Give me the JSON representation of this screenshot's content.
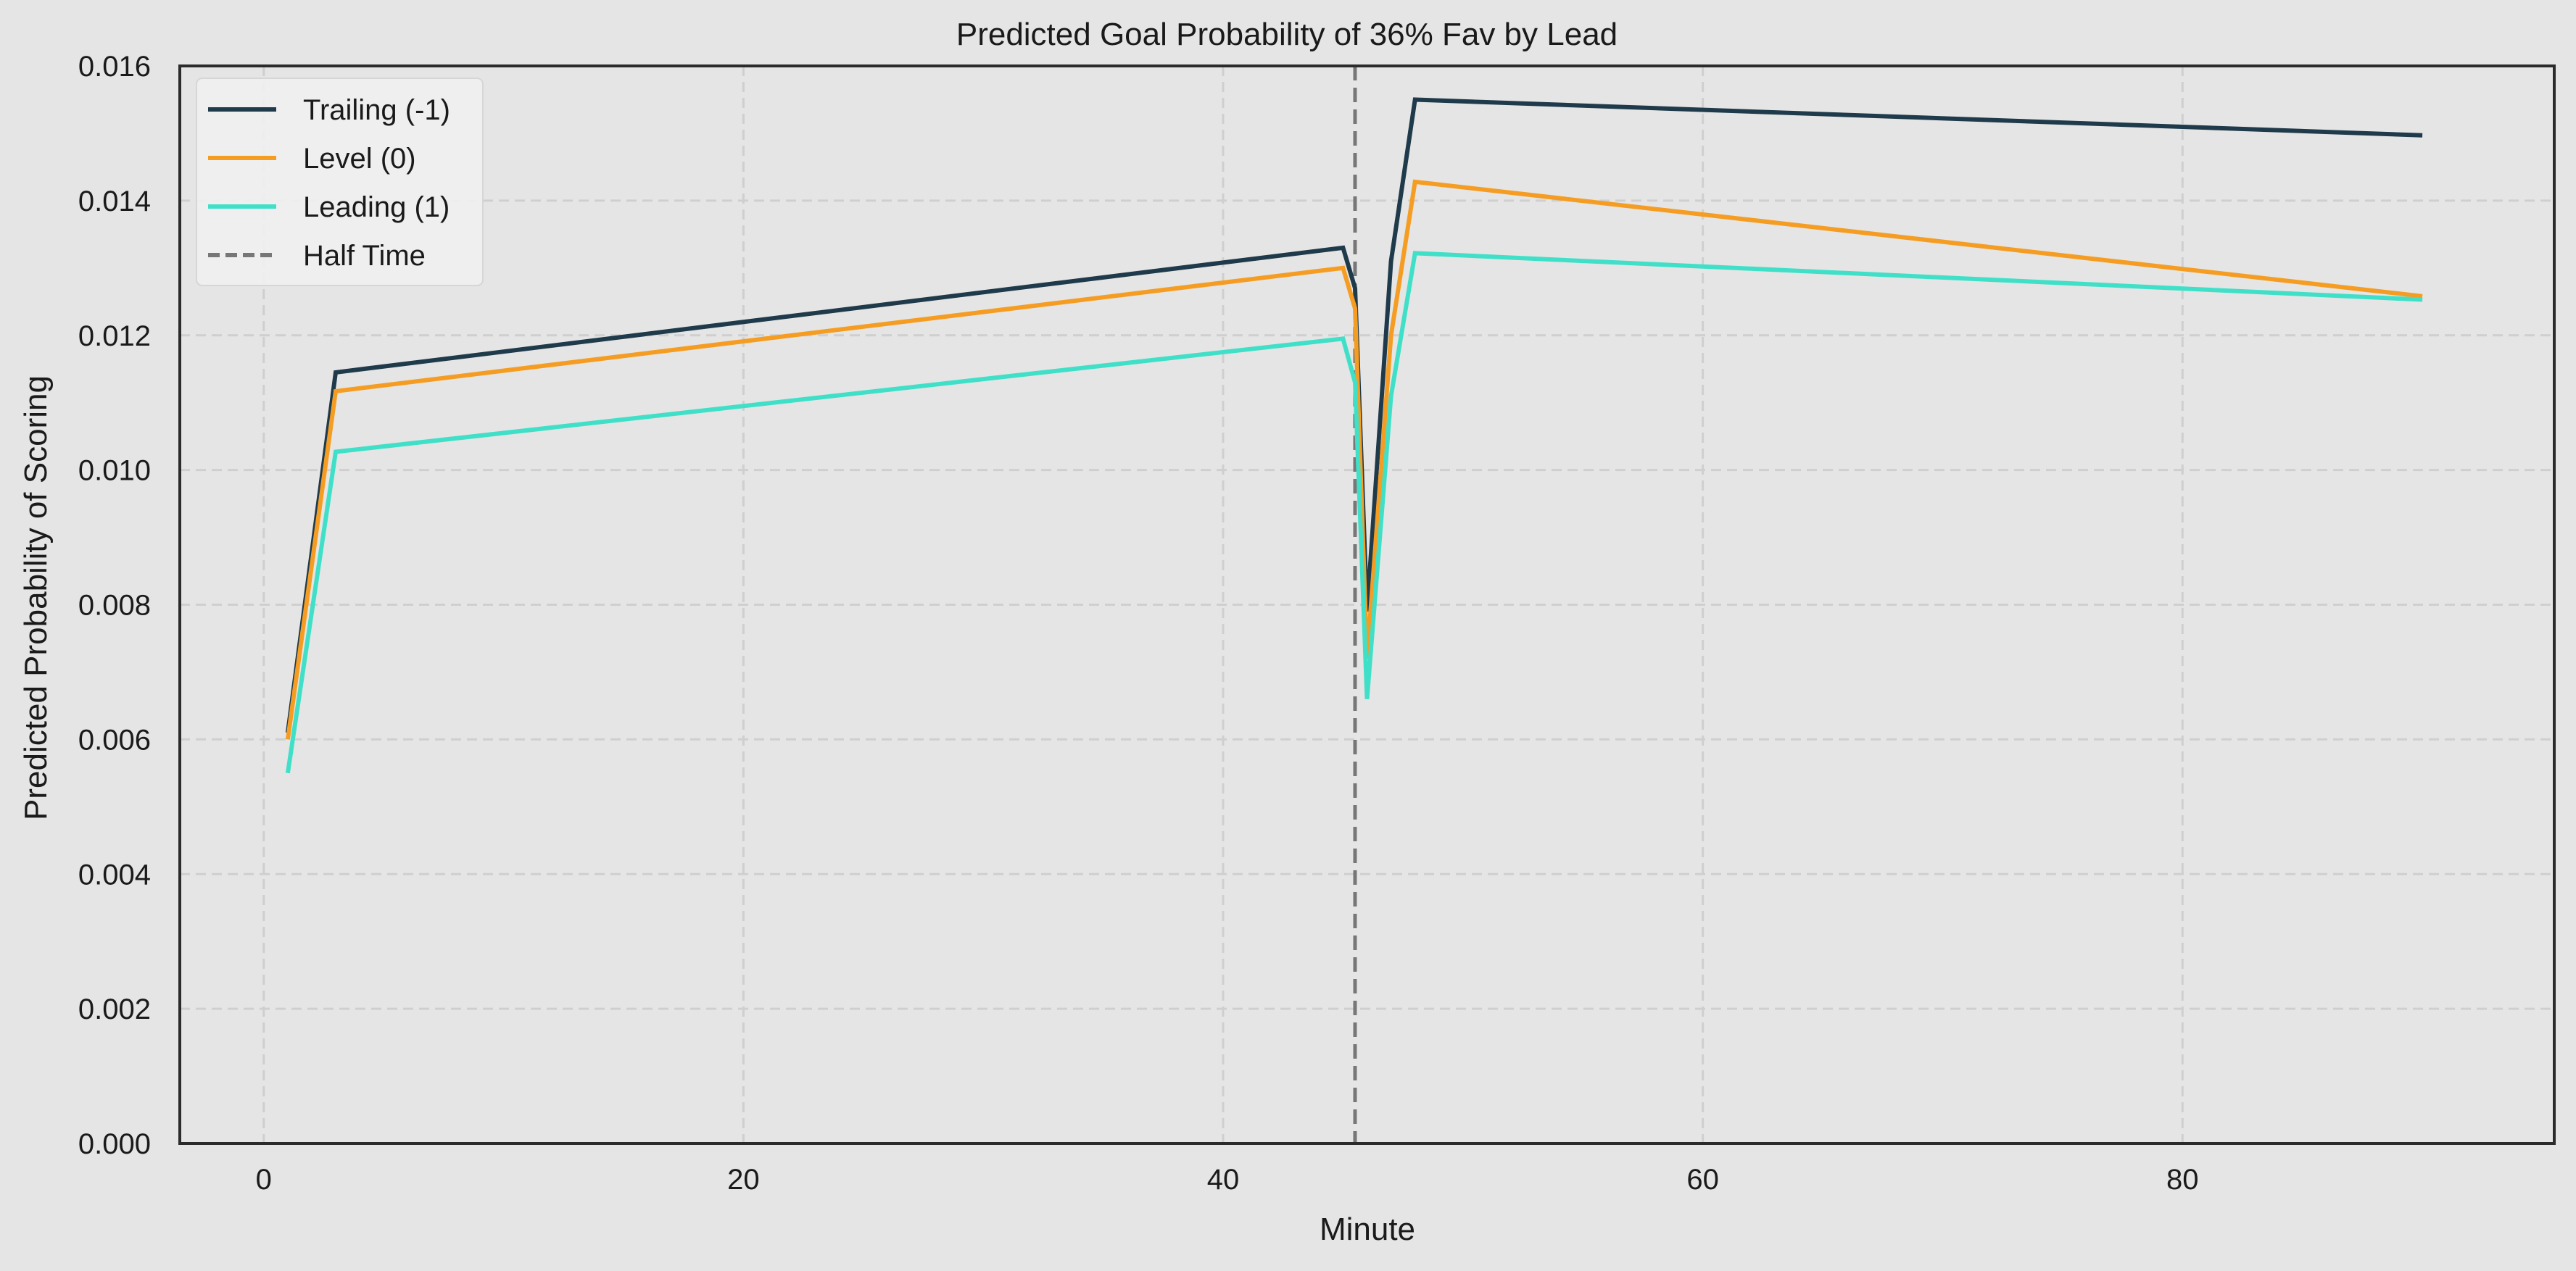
{
  "chart_data": {
    "type": "line",
    "title": "Predicted Goal Probability of 36% Fav by Lead",
    "xlabel": "Minute",
    "ylabel": "Predicted Probability of Scoring",
    "xlim": [
      -3.5,
      95.5
    ],
    "ylim": [
      0.0,
      0.016
    ],
    "xticks": [
      0,
      20,
      40,
      60,
      80
    ],
    "xtick_labels": [
      "0",
      "20",
      "40",
      "60",
      "80"
    ],
    "yticks": [
      0.0,
      0.002,
      0.004,
      0.006,
      0.008,
      0.01,
      0.012,
      0.014,
      0.016
    ],
    "ytick_labels": [
      "0.000",
      "0.002",
      "0.004",
      "0.006",
      "0.008",
      "0.010",
      "0.012",
      "0.014",
      "0.016"
    ],
    "grid": true,
    "legend_position": "top-left",
    "x": [
      1,
      3,
      45,
      45.5,
      46,
      47,
      48,
      90
    ],
    "series": [
      {
        "name": "Trailing (-1)",
        "color": "#1f3a4a",
        "values": [
          0.0061,
          0.01145,
          0.0133,
          0.0127,
          0.0079,
          0.0131,
          0.0155,
          0.01497
        ]
      },
      {
        "name": "Level (0)",
        "color": "#f59d23",
        "values": [
          0.006,
          0.01117,
          0.013,
          0.0124,
          0.0072,
          0.012,
          0.01428,
          0.01258
        ]
      },
      {
        "name": "Leading (1)",
        "color": "#40e0c8",
        "values": [
          0.0055,
          0.01027,
          0.01195,
          0.0113,
          0.0066,
          0.0111,
          0.01322,
          0.01253
        ]
      }
    ],
    "vlines": [
      {
        "name": "Half Time",
        "x": 45.5,
        "color": "#777777",
        "style": "dashed"
      }
    ]
  }
}
